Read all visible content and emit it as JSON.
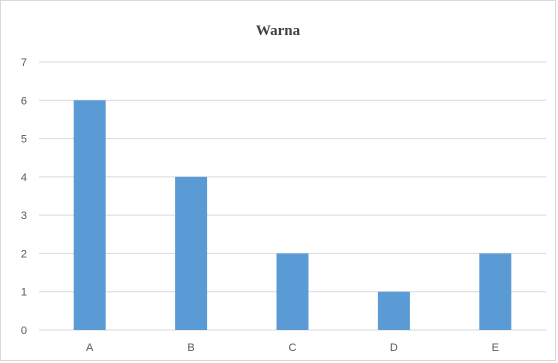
{
  "chart_data": {
    "type": "bar",
    "title": "Warna",
    "categories": [
      "A",
      "B",
      "C",
      "D",
      "E"
    ],
    "values": [
      6,
      4,
      2,
      1,
      2
    ],
    "ylim": [
      0,
      7
    ],
    "yticks": [
      "0",
      "1",
      "2",
      "3",
      "4",
      "5",
      "6",
      "7"
    ],
    "xlabel": "",
    "ylabel": "",
    "grid": true,
    "legend": "none",
    "bar_color": "#5b9bd5",
    "grid_color": "#d9d9d9"
  }
}
